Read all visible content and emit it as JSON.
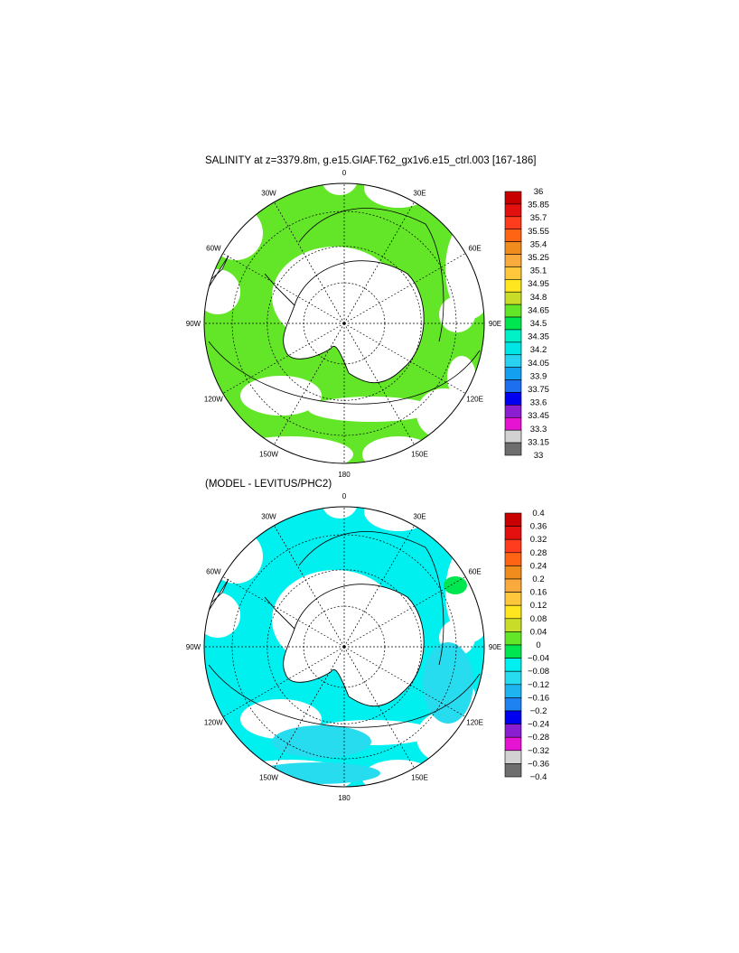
{
  "chart_data": [
    {
      "type": "heatmap",
      "projection": "south-polar-stereographic",
      "title": "SALINITY at z=3379.8m, g.e15.GIAF.T62_gx1v6.e15_ctrl.003 [167-186]",
      "longitude_labels": [
        "0",
        "30E",
        "60E",
        "90E",
        "120E",
        "150E",
        "180",
        "150W",
        "120W",
        "90W",
        "60W",
        "30W"
      ],
      "colorbar": {
        "levels": [
          "36",
          "35.85",
          "35.7",
          "35.55",
          "35.4",
          "35.25",
          "35.1",
          "34.95",
          "34.8",
          "34.65",
          "34.5",
          "34.35",
          "34.2",
          "34.05",
          "33.9",
          "33.75",
          "33.6",
          "33.45",
          "33.3",
          "33.15",
          "33"
        ],
        "colors": [
          "#c80000",
          "#e41010",
          "#ff3c1e",
          "#ff6414",
          "#f08c1e",
          "#faaa3c",
          "#ffc83c",
          "#ffe61e",
          "#c8dc28",
          "#64e628",
          "#00e650",
          "#00f0c8",
          "#00e6e6",
          "#28d2f0",
          "#14a0f0",
          "#1e6ef0",
          "#0000f0",
          "#8c1ed2",
          "#e614d2",
          "#d2d2d2",
          "#6e6e6e"
        ]
      },
      "dominant_value_range": [
        34.65,
        34.8
      ]
    },
    {
      "type": "heatmap",
      "projection": "south-polar-stereographic",
      "title": "(MODEL - LEVITUS/PHC2)",
      "longitude_labels": [
        "0",
        "30E",
        "60E",
        "90E",
        "120E",
        "150E",
        "180",
        "150W",
        "120W",
        "90W",
        "60W",
        "30W"
      ],
      "colorbar": {
        "levels": [
          "0.4",
          "0.36",
          "0.32",
          "0.28",
          "0.24",
          "0.2",
          "0.16",
          "0.12",
          "0.08",
          "0.04",
          "0",
          "−0.04",
          "−0.08",
          "−0.12",
          "−0.16",
          "−0.2",
          "−0.24",
          "−0.28",
          "−0.32",
          "−0.36",
          "−0.4"
        ],
        "colors": [
          "#c80000",
          "#e41010",
          "#ff3c1e",
          "#ff6414",
          "#f08c1e",
          "#faaa3c",
          "#ffc83c",
          "#ffe61e",
          "#c8dc28",
          "#64e628",
          "#00e650",
          "#00f0f0",
          "#28dcf0",
          "#1eb4f0",
          "#1e82f0",
          "#0000f0",
          "#8c1ed2",
          "#e614d2",
          "#d2d2d2",
          "#6e6e6e"
        ]
      },
      "dominant_value_range": [
        -0.04,
        0
      ]
    }
  ]
}
